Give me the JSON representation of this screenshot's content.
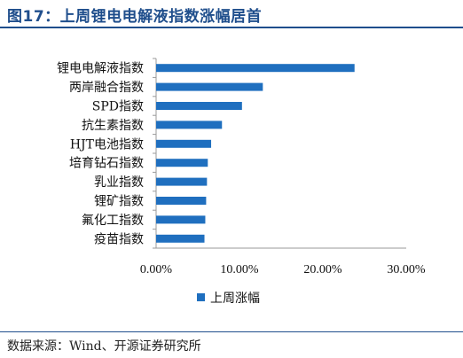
{
  "figure": {
    "title": "图17：上周锂电电解液指数涨幅居首",
    "source": "数据来源：Wind、开源证券研究所"
  },
  "colors": {
    "bar": "#1f6fbf",
    "rule": "#1f4e8c",
    "axis": "#9a9a9a"
  },
  "chart_data": {
    "type": "bar",
    "orientation": "horizontal",
    "title": "",
    "xlabel": "",
    "ylabel": "",
    "categories": [
      "锂电电解液指数",
      "两岸融合指数",
      "SPD指数",
      "抗生素指数",
      "HJT电池指数",
      "培育钻石指数",
      "乳业指数",
      "锂矿指数",
      "氟化工指数",
      "疫苗指数"
    ],
    "series": [
      {
        "name": "上周涨幅",
        "values": [
          0.238,
          0.128,
          0.103,
          0.079,
          0.066,
          0.062,
          0.061,
          0.06,
          0.059,
          0.058
        ]
      }
    ],
    "xlim": [
      0,
      0.3
    ],
    "ticks": [
      0,
      0.1,
      0.2,
      0.3
    ],
    "tick_labels": [
      "0.00%",
      "10.00%",
      "20.00%",
      "30.00%"
    ],
    "legend": "bottom",
    "grid": false
  }
}
